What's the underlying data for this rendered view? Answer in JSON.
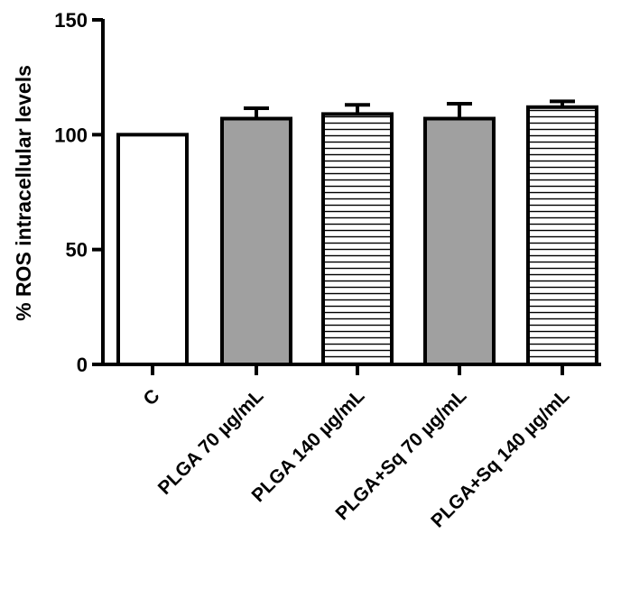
{
  "chart_data": {
    "type": "bar",
    "title": "",
    "xlabel": "",
    "ylabel": "% ROS intracellular levels",
    "ylim": [
      0,
      150
    ],
    "yticks": [
      0,
      50,
      100,
      150
    ],
    "grid": false,
    "legend": "none",
    "categories": [
      "C",
      "PLGA 70 µg/mL",
      "PLGA 140 µg/mL",
      "PLGA+Sq 70 µg/mL",
      "PLGA+Sq 140 µg/mL"
    ],
    "values": [
      100,
      107,
      109,
      107,
      112
    ],
    "errors": [
      0,
      4.5,
      4,
      6.5,
      2.5
    ],
    "fills": [
      "white",
      "gray",
      "horizontal-stripes",
      "gray",
      "horizontal-stripes"
    ],
    "colors": {
      "outline": "#000000",
      "gray_fill": "#a0a0a0",
      "white_fill": "#ffffff"
    }
  }
}
